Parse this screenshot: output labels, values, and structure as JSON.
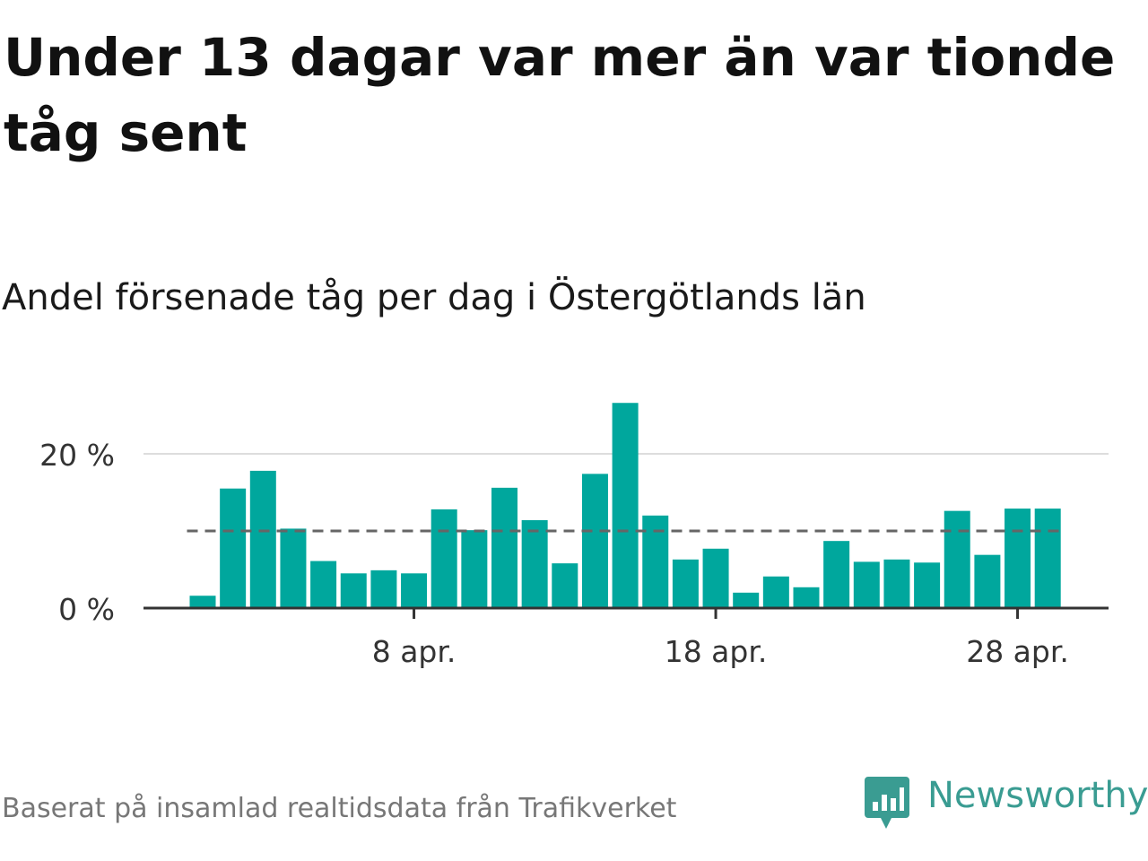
{
  "headline": "Under 13 dagar var mer än var tionde tåg sent",
  "subtitle": "Andel försenade tåg per dag i Östergötlands län",
  "source": "Baserat på insamlad realtidsdata från Trafikverket",
  "brand": {
    "name": "Newsworthy",
    "icon": "bar-chart-speech-bubble-icon"
  },
  "colors": {
    "bar": "#00a79d",
    "reference_line": "#666666",
    "grid": "#dddddd",
    "axis": "#333333",
    "brand": "#3a9c92"
  },
  "chart_data": {
    "type": "bar",
    "x": [
      "2020-04-01",
      "2020-04-02",
      "2020-04-03",
      "2020-04-04",
      "2020-04-05",
      "2020-04-06",
      "2020-04-07",
      "2020-04-08",
      "2020-04-09",
      "2020-04-10",
      "2020-04-11",
      "2020-04-12",
      "2020-04-13",
      "2020-04-14",
      "2020-04-15",
      "2020-04-16",
      "2020-04-17",
      "2020-04-18",
      "2020-04-19",
      "2020-04-20",
      "2020-04-21",
      "2020-04-22",
      "2020-04-23",
      "2020-04-24",
      "2020-04-25",
      "2020-04-26",
      "2020-04-27",
      "2020-04-28",
      "2020-04-29"
    ],
    "values": [
      1.6,
      15.5,
      17.8,
      10.3,
      6.1,
      4.5,
      4.9,
      4.5,
      12.8,
      10.1,
      15.6,
      11.4,
      5.8,
      17.4,
      26.6,
      12.0,
      6.3,
      7.7,
      2.0,
      4.1,
      2.7,
      8.7,
      6.0,
      6.3,
      5.9,
      12.6,
      6.9,
      12.9,
      12.9
    ],
    "ylim": [
      0,
      28
    ],
    "y_ticks": [
      0,
      20
    ],
    "y_tick_labels": [
      "0 %",
      "20 %"
    ],
    "x_ticks": [
      "2020-04-08",
      "2020-04-18",
      "2020-04-28"
    ],
    "x_tick_labels": [
      "8 apr.",
      "18 apr.",
      "28 apr."
    ],
    "reference_line": 10,
    "grid": true,
    "xlabel": "",
    "ylabel": ""
  }
}
